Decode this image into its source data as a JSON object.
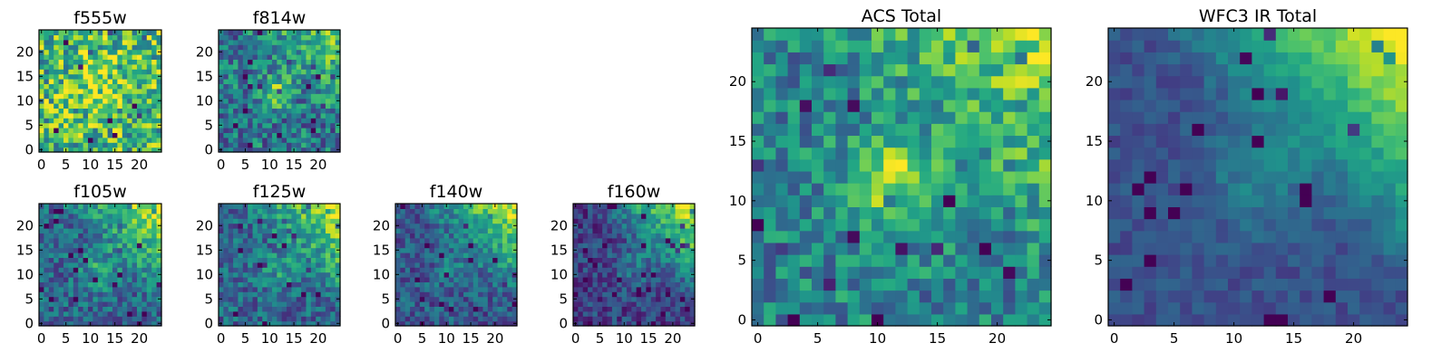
{
  "figure": {
    "colormap": "viridis",
    "colors": {
      "axis": "#000000",
      "background": "#ffffff"
    }
  },
  "chart_data": [
    {
      "type": "heatmap",
      "id": "f555w",
      "title": "f555w",
      "xlim": [
        0,
        24
      ],
      "ylim": [
        0,
        24
      ],
      "xticks": [
        0,
        5,
        10,
        15,
        20
      ],
      "yticks": [
        0,
        5,
        10,
        15,
        20
      ],
      "grid": false,
      "pattern": {
        "noise": 0.34,
        "center": [
          11,
          13
        ],
        "center_sigma": 4,
        "center_amp": 0.2,
        "corner_amp": 0.05,
        "base": 0.66,
        "seed": 11
      }
    },
    {
      "type": "heatmap",
      "id": "f814w",
      "title": "f814w",
      "xlim": [
        0,
        24
      ],
      "ylim": [
        0,
        24
      ],
      "xticks": [
        0,
        5,
        10,
        15,
        20
      ],
      "yticks": [
        0,
        5,
        10,
        15,
        20
      ],
      "grid": false,
      "pattern": {
        "noise": 0.26,
        "center": [
          11,
          12
        ],
        "center_sigma": 2.5,
        "center_amp": 0.35,
        "corner_amp": 0.35,
        "base": 0.4,
        "seed": 23
      }
    },
    {
      "type": "heatmap",
      "id": "f105w",
      "title": "f105w",
      "xlim": [
        0,
        24
      ],
      "ylim": [
        0,
        24
      ],
      "xticks": [
        0,
        5,
        10,
        15,
        20
      ],
      "yticks": [
        0,
        5,
        10,
        15,
        20
      ],
      "grid": false,
      "pattern": {
        "noise": 0.2,
        "center": [
          12,
          11
        ],
        "center_sigma": 3,
        "center_amp": 0.25,
        "corner_amp": 0.6,
        "base": 0.33,
        "seed": 37
      }
    },
    {
      "type": "heatmap",
      "id": "f125w",
      "title": "f125w",
      "xlim": [
        0,
        24
      ],
      "ylim": [
        0,
        24
      ],
      "xticks": [
        0,
        5,
        10,
        15,
        20
      ],
      "yticks": [
        0,
        5,
        10,
        15,
        20
      ],
      "grid": false,
      "pattern": {
        "noise": 0.2,
        "center": [
          12,
          11
        ],
        "center_sigma": 3,
        "center_amp": 0.2,
        "corner_amp": 0.6,
        "base": 0.33,
        "seed": 41
      }
    },
    {
      "type": "heatmap",
      "id": "f140w",
      "title": "f140w",
      "xlim": [
        0,
        24
      ],
      "ylim": [
        0,
        24
      ],
      "xticks": [
        0,
        5,
        10,
        15,
        20
      ],
      "yticks": [
        0,
        5,
        10,
        15,
        20
      ],
      "grid": false,
      "pattern": {
        "noise": 0.18,
        "center": [
          12,
          11
        ],
        "center_sigma": 3,
        "center_amp": 0.15,
        "corner_amp": 0.65,
        "base": 0.28,
        "seed": 53
      }
    },
    {
      "type": "heatmap",
      "id": "f160w",
      "title": "f160w",
      "xlim": [
        0,
        24
      ],
      "ylim": [
        0,
        24
      ],
      "xticks": [
        0,
        5,
        10,
        15,
        20
      ],
      "yticks": [
        0,
        5,
        10,
        15,
        20
      ],
      "grid": false,
      "pattern": {
        "noise": 0.16,
        "center": [
          12,
          12
        ],
        "center_sigma": 3,
        "center_amp": 0.2,
        "corner_amp": 0.75,
        "base": 0.2,
        "seed": 67
      }
    },
    {
      "type": "heatmap",
      "id": "acs-total",
      "title": "ACS Total",
      "xlim": [
        0,
        24
      ],
      "ylim": [
        0,
        24
      ],
      "xticks": [
        0,
        5,
        10,
        15,
        20
      ],
      "yticks": [
        0,
        5,
        10,
        15,
        20
      ],
      "grid": false,
      "pattern": {
        "noise": 0.22,
        "center": [
          11,
          12
        ],
        "center_sigma": 2.5,
        "center_amp": 0.45,
        "corner_amp": 0.4,
        "base": 0.45,
        "seed": 79
      }
    },
    {
      "type": "heatmap",
      "id": "wfc3-ir-total",
      "title": "WFC3 IR Total",
      "xlim": [
        0,
        24
      ],
      "ylim": [
        0,
        24
      ],
      "xticks": [
        0,
        5,
        10,
        15,
        20
      ],
      "yticks": [
        0,
        5,
        10,
        15,
        20
      ],
      "grid": false,
      "pattern": {
        "noise": 0.08,
        "center": [
          12,
          12
        ],
        "center_sigma": 3,
        "center_amp": 0.2,
        "corner_amp": 0.75,
        "base": 0.25,
        "seed": 97
      }
    }
  ]
}
